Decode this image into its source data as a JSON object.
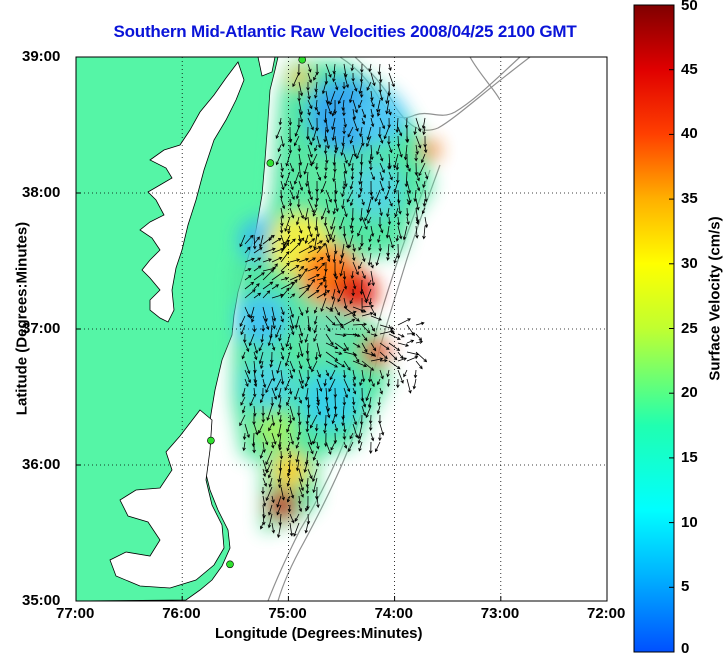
{
  "title": "Southern Mid-Atlantic Raw Velocities 2008/04/25 2100 GMT",
  "x_axis": {
    "label": "Longitude (Degrees:Minutes)",
    "ticks": [
      "77:00",
      "76:00",
      "75:00",
      "74:00",
      "73:00",
      "72:00"
    ]
  },
  "y_axis": {
    "label": "Latitude (Degrees:Minutes)",
    "ticks": [
      "39:00",
      "38:00",
      "37:00",
      "36:00",
      "35:00"
    ]
  },
  "colorbar": {
    "label": "Surface Velocity (cm/s)",
    "ticks": [
      "50",
      "45",
      "40",
      "35",
      "30",
      "25",
      "20",
      "15",
      "10",
      "5",
      "0"
    ],
    "range": [
      0,
      50
    ]
  },
  "map": {
    "lon_range": [
      -77,
      -72
    ],
    "lat_range": [
      35,
      39
    ],
    "grid": "dotted",
    "colors": {
      "land": "#55f5a6",
      "water": "#ffffff",
      "coast": "#000000",
      "bathymetry": "#909090",
      "station": "#30e030"
    },
    "stations": [
      {
        "lon": -74.87,
        "lat": 38.98
      },
      {
        "lon": -75.17,
        "lat": 38.22
      },
      {
        "lon": -75.73,
        "lat": 36.18
      },
      {
        "lon": -75.55,
        "lat": 35.27
      }
    ]
  }
}
